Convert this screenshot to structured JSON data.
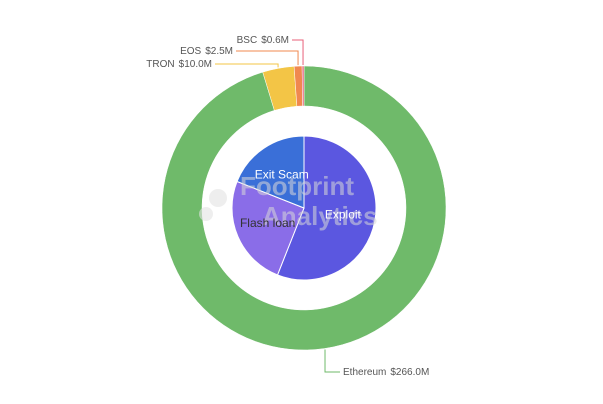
{
  "chart_data": [
    {
      "type": "pie",
      "categories": [
        "Ethereum",
        "TRON",
        "EOS",
        "BSC"
      ],
      "values": [
        266.0,
        10.0,
        2.5,
        0.6
      ],
      "value_labels": [
        "$266.0M",
        "$10.0M",
        "$2.5M",
        "$0.6M"
      ],
      "colors": [
        "#6fba6a",
        "#f3c546",
        "#f0884f",
        "#e8607a"
      ]
    },
    {
      "type": "pie",
      "categories": [
        "Exploit",
        "Flash loan",
        "Exit Scam"
      ],
      "values": [
        56,
        25,
        19
      ],
      "colors": [
        "#5b57e0",
        "#8a6de8",
        "#3a6fd8"
      ]
    }
  ],
  "watermark": [
    "Footprint",
    "Analytics"
  ]
}
